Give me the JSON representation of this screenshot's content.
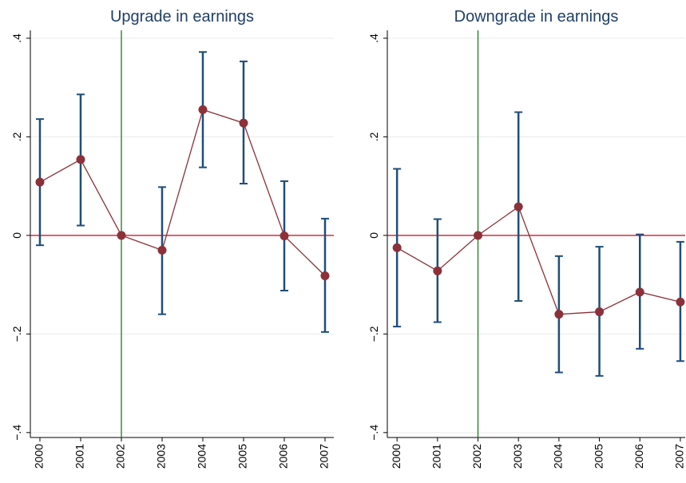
{
  "chart_data": [
    {
      "type": "line",
      "title": "Upgrade in earnings",
      "x": [
        2000,
        2001,
        2002,
        2003,
        2004,
        2005,
        2006,
        2007
      ],
      "values": [
        0.108,
        0.154,
        0,
        -0.03,
        0.255,
        0.228,
        -0.001,
        -0.082
      ],
      "lower": [
        -0.02,
        0.02,
        null,
        -0.16,
        0.138,
        0.105,
        -0.112,
        -0.196
      ],
      "upper": [
        0.236,
        0.286,
        null,
        0.098,
        0.372,
        0.353,
        0.11,
        0.034
      ],
      "color": "#8c3039",
      "errorbar_color": "#1f4e79",
      "hline": 0,
      "hline_color": "#d0021b",
      "vline": 2002,
      "vline_color": "#1a7a1a",
      "xlim": [
        1999.765,
        2007.216
      ],
      "xticks": [
        2000,
        2001,
        2002,
        2003,
        2004,
        2005,
        2006,
        2007
      ],
      "ylim": [
        -0.41,
        0.416
      ],
      "yticks": [
        {
          "value": -0.4,
          "label": "−.4"
        },
        {
          "value": -0.2,
          "label": "−.2"
        },
        0,
        {
          "value": 0.2,
          "label": ".2"
        },
        {
          "value": 0.4,
          "label": ".4"
        }
      ],
      "grid": true
    },
    {
      "type": "line",
      "title": "Downgrade in earnings",
      "x": [
        2000,
        2001,
        2002,
        2003,
        2004,
        2005,
        2006,
        2007
      ],
      "values": [
        -0.025,
        -0.072,
        0,
        0.058,
        -0.16,
        -0.155,
        -0.115,
        -0.135
      ],
      "lower": [
        -0.185,
        -0.176,
        null,
        -0.133,
        -0.278,
        -0.285,
        -0.23,
        -0.255
      ],
      "upper": [
        0.135,
        0.033,
        null,
        0.25,
        -0.042,
        -0.023,
        0.002,
        -0.013
      ],
      "color": "#8c3039",
      "errorbar_color": "#1f4e79",
      "hline": 0,
      "hline_color": "#d0021b",
      "vline": 2002,
      "vline_color": "#1a7a1a",
      "xlim": [
        1999.76,
        2007.12
      ],
      "xticks": [
        2000,
        2001,
        2002,
        2003,
        2004,
        2005,
        2006,
        2007
      ],
      "ylim": [
        -0.41,
        0.416
      ],
      "yticks": [
        {
          "value": -0.4,
          "label": "−.4"
        },
        {
          "value": -0.2,
          "label": "−.2"
        },
        0,
        {
          "value": 0.2,
          "label": ".2"
        },
        {
          "value": 0.4,
          "label": ".4"
        }
      ],
      "grid": true
    }
  ]
}
